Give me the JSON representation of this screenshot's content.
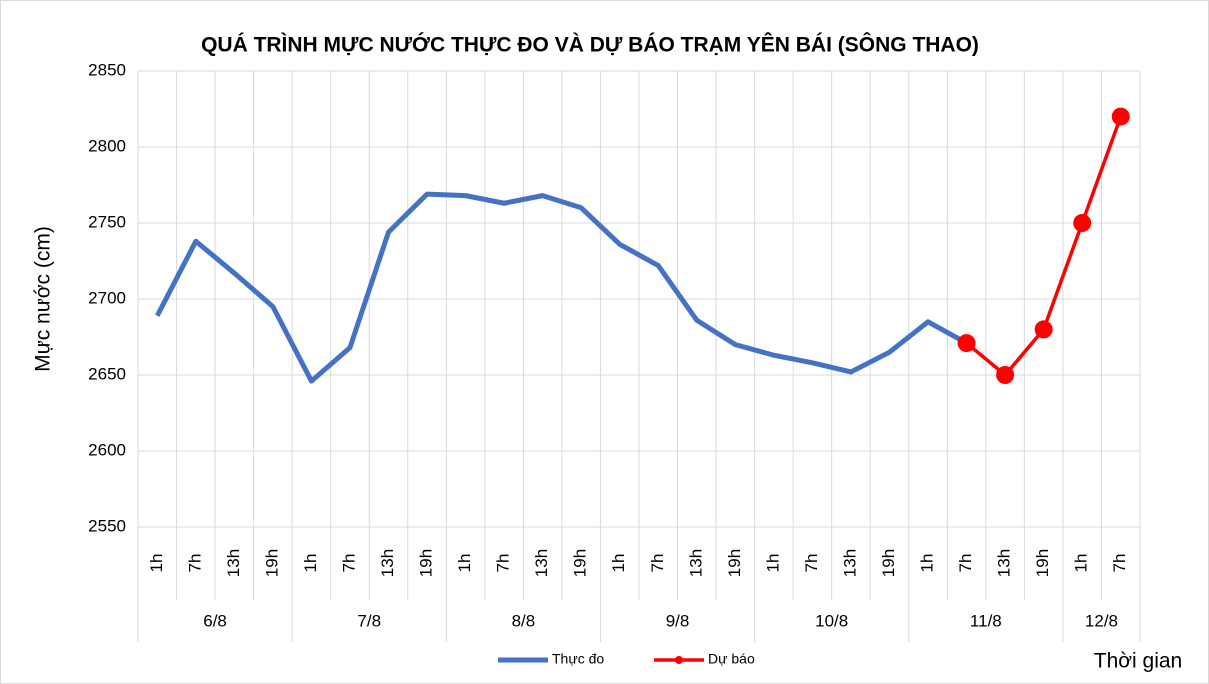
{
  "chart_data": {
    "type": "line",
    "title": "QUÁ TRÌNH MỰC NƯỚC THỰC ĐO VÀ DỰ BÁO TRẠM YÊN BÁI (SÔNG THAO)",
    "y_label": "Mực nước (cm)",
    "x_label": "Thời gian",
    "groups": [
      {
        "name": "6/8",
        "categories": [
          "1h",
          "7h",
          "13h",
          "19h"
        ]
      },
      {
        "name": "7/8",
        "categories": [
          "1h",
          "7h",
          "13h",
          "19h"
        ]
      },
      {
        "name": "8/8",
        "categories": [
          "1h",
          "7h",
          "13h",
          "19h"
        ]
      },
      {
        "name": "9/8",
        "categories": [
          "1h",
          "7h",
          "13h",
          "19h"
        ]
      },
      {
        "name": "10/8",
        "categories": [
          "1h",
          "7h",
          "13h",
          "19h"
        ]
      },
      {
        "name": "11/8",
        "categories": [
          "1h",
          "7h",
          "13h",
          "19h"
        ]
      },
      {
        "name": "12/8",
        "categories": [
          "1h",
          "7h"
        ]
      }
    ],
    "series": [
      {
        "name": "Thực đo",
        "color": "#4472c4",
        "marker": false,
        "values": [
          2689,
          2738,
          2717,
          2695,
          2646,
          2668,
          2744,
          2769,
          2768,
          2763,
          2768,
          2760,
          2736,
          2722,
          2686,
          2670,
          2663,
          2658,
          2652,
          2665,
          2685,
          2671,
          null,
          null,
          null,
          null
        ]
      },
      {
        "name": "Dự báo",
        "color": "#ff0000",
        "marker": true,
        "values": [
          null,
          null,
          null,
          null,
          null,
          null,
          null,
          null,
          null,
          null,
          null,
          null,
          null,
          null,
          null,
          null,
          null,
          null,
          null,
          null,
          null,
          2671,
          2650,
          2680,
          2750,
          2820
        ]
      }
    ],
    "ylim": [
      2550,
      2850
    ],
    "yticks": [
      2550,
      2600,
      2650,
      2700,
      2750,
      2800,
      2850
    ],
    "grid": true
  }
}
